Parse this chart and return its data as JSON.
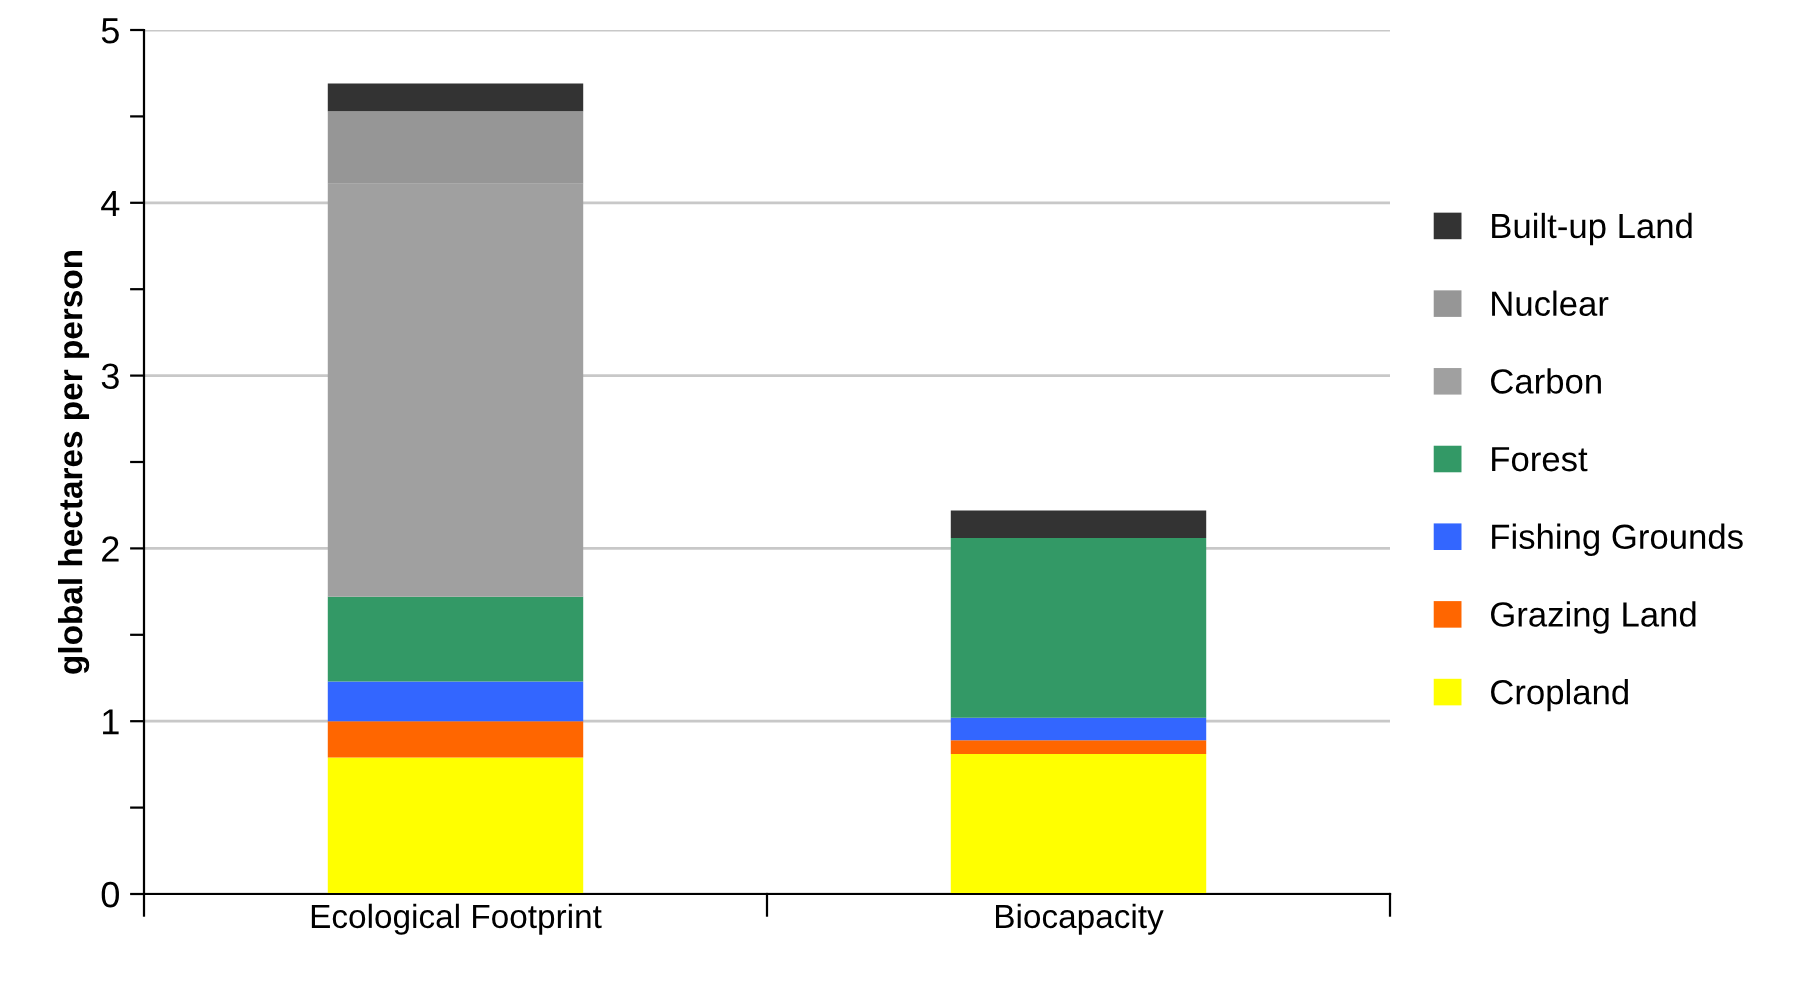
{
  "chart_data": {
    "type": "bar",
    "stacked": true,
    "ylabel": "global hectares per person",
    "categories": [
      "Ecological Footprint",
      "Biocapacity"
    ],
    "series": [
      {
        "name": "Cropland",
        "color": "#ffff00",
        "values": [
          0.79,
          0.81
        ]
      },
      {
        "name": "Grazing Land",
        "color": "#ff6600",
        "values": [
          0.21,
          0.08
        ]
      },
      {
        "name": "Fishing Grounds",
        "color": "#3366ff",
        "values": [
          0.23,
          0.13
        ]
      },
      {
        "name": "Forest",
        "color": "#339966",
        "values": [
          0.49,
          1.04
        ]
      },
      {
        "name": "Carbon",
        "color": "#a0a0a0",
        "values": [
          2.39,
          0
        ]
      },
      {
        "name": "Nuclear",
        "color": "#969696",
        "values": [
          0.42,
          0
        ]
      },
      {
        "name": "Built-up Land",
        "color": "#333333",
        "values": [
          0.16,
          0.16
        ]
      }
    ],
    "ylim": [
      0,
      5
    ],
    "yticks": [
      0,
      {
        "value": 0.5,
        "label": null
      },
      1,
      {
        "value": 1.5,
        "label": null
      },
      2,
      {
        "value": 2.5,
        "label": null
      },
      3,
      {
        "value": 3.5,
        "label": null
      },
      4,
      {
        "value": 4.5,
        "label": null
      },
      5
    ],
    "grid": "y",
    "legend": "right"
  }
}
